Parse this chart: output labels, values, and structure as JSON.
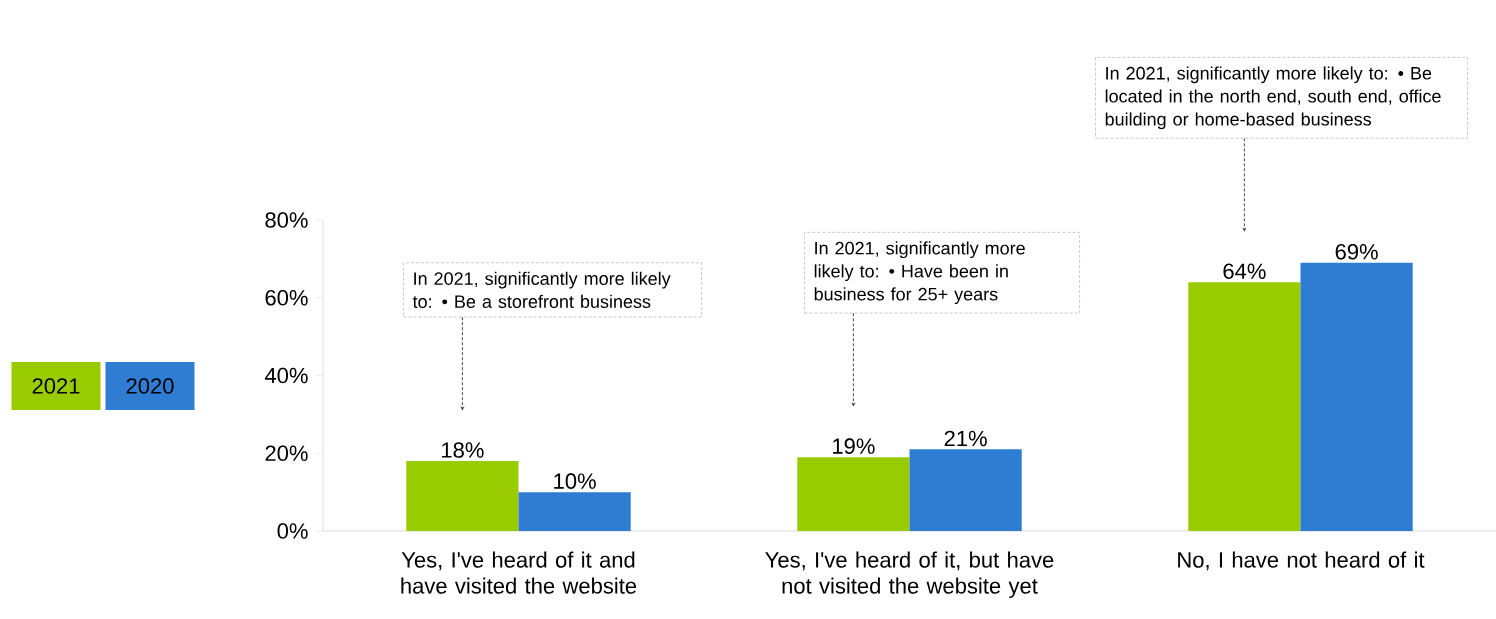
{
  "chart_data": {
    "type": "bar",
    "categories": [
      "Yes, I've heard of it and have visited the website",
      "Yes, I've heard of it, but have not visited the website yet",
      "No, I have not heard of it"
    ],
    "series": [
      {
        "name": "2021",
        "color": "#99cc00",
        "values": [
          18,
          19,
          64
        ],
        "value_labels": [
          "18%",
          "19%",
          "64%"
        ]
      },
      {
        "name": "2020",
        "color": "#2e7dd2",
        "values": [
          10,
          21,
          69
        ],
        "value_labels": [
          "10%",
          "21%",
          "69%"
        ]
      }
    ],
    "ylim": [
      0,
      80
    ],
    "yticks": [
      {
        "value": 0,
        "label": "0%"
      },
      {
        "value": 20,
        "label": "20%"
      },
      {
        "value": 40,
        "label": "40%"
      },
      {
        "value": 60,
        "label": "60%"
      },
      {
        "value": 80,
        "label": "80%"
      }
    ],
    "grid": false,
    "legend": "left",
    "annotations": [
      "In 2021, significantly more likely to: • Be a storefront business",
      "In 2021, significantly more likely to: • Have been in business for 25+ years",
      "In 2021, significantly more likely to: • Be located in the north end, south end, office building or home-based business"
    ]
  }
}
